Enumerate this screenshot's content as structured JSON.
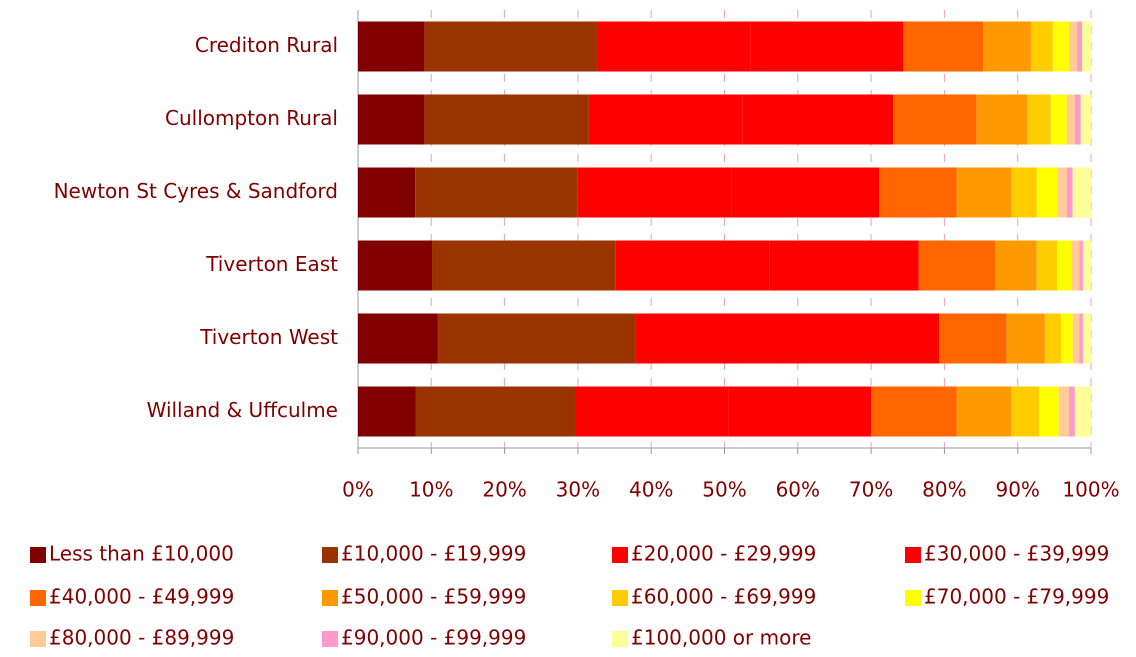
{
  "chart_data": {
    "type": "stacked_barh",
    "categories": [
      "Crediton Rural",
      "Cullompton Rural",
      "Newton St Cyres & Sandford",
      "Tiverton East",
      "Tiverton West",
      "Willand & Uffculme"
    ],
    "series": [
      {
        "name": "Less than £10,000",
        "color": "#800000",
        "values": [
          9.1,
          9.1,
          7.8,
          10.1,
          10.9,
          7.9
        ]
      },
      {
        "name": "£10,000 - £19,999",
        "color": "#993300",
        "values": [
          23.5,
          22.4,
          22.1,
          25.0,
          26.9,
          21.7
        ]
      },
      {
        "name": "£20,000 - £29,999",
        "color": "#ff0000",
        "values": [
          21.0,
          21.0,
          21.0,
          21.0,
          21.0,
          21.0
        ]
      },
      {
        "name": "£30,000 - £39,999",
        "color": "#ff0000",
        "values": [
          20.8,
          20.5,
          20.2,
          20.4,
          20.5,
          19.4
        ]
      },
      {
        "name": "£40,000 - £49,999",
        "color": "#ff6600",
        "values": [
          10.9,
          11.4,
          10.6,
          10.4,
          9.2,
          11.7
        ]
      },
      {
        "name": "£50,000 - £59,999",
        "color": "#ff9900",
        "values": [
          6.5,
          6.9,
          7.4,
          5.7,
          5.2,
          7.4
        ]
      },
      {
        "name": "£60,000 - £69,999",
        "color": "#ffcc00",
        "values": [
          3.0,
          3.2,
          3.5,
          2.8,
          2.2,
          3.8
        ]
      },
      {
        "name": "£70,000 - £79,999",
        "color": "#ffff00",
        "values": [
          2.2,
          2.2,
          2.8,
          1.9,
          1.6,
          2.7
        ]
      },
      {
        "name": "£80,000 - £89,999",
        "color": "#ffcc99",
        "values": [
          1.1,
          1.1,
          1.3,
          1.1,
          0.9,
          1.4
        ]
      },
      {
        "name": "£90,000 - £99,999",
        "color": "#ff99cc",
        "values": [
          0.7,
          0.8,
          0.8,
          0.5,
          0.5,
          0.8
        ]
      },
      {
        "name": "£100,000 or more",
        "color": "#ffff99",
        "values": [
          1.2,
          1.4,
          2.5,
          1.1,
          1.1,
          2.2
        ]
      }
    ],
    "xlim": [
      0,
      100
    ],
    "xticks": [
      {
        "value": 0,
        "label": "0%"
      },
      {
        "value": 10,
        "label": "10%"
      },
      {
        "value": 20,
        "label": "20%"
      },
      {
        "value": 30,
        "label": "30%"
      },
      {
        "value": 40,
        "label": "40%"
      },
      {
        "value": 50,
        "label": "50%"
      },
      {
        "value": 60,
        "label": "60%"
      },
      {
        "value": 70,
        "label": "70%"
      },
      {
        "value": 80,
        "label": "80%"
      },
      {
        "value": 90,
        "label": "90%"
      },
      {
        "value": 100,
        "label": "100%"
      }
    ],
    "grid": true,
    "legend": "bottom"
  }
}
